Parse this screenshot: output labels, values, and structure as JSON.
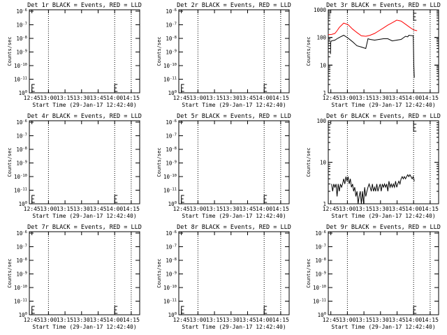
{
  "colors": {
    "events": "#000000",
    "lld": "#ff0000",
    "background": "#ffffff"
  },
  "chart_data": [
    {
      "type": "line",
      "title": "Det 1r BLACK = Events, RED = LLD",
      "xlabel": "Start Time (29-Jan-17 12:42:40)",
      "ylabel": "Counts/sec",
      "xlim": [
        "12:42:40",
        "14:22:40"
      ],
      "x_ticks": [
        "12:45",
        "13:00",
        "13:15",
        "13:30",
        "13:45",
        "14:00",
        "14:15"
      ],
      "yscale": "log",
      "ylim": [
        1e-06,
        1e-10
      ],
      "y_ticks": [
        "10^-6",
        "10^-7",
        "10^-8",
        "10^-9",
        "10^-10",
        "10^-11",
        "10^0"
      ],
      "vlines": [
        "13:00",
        "14:00",
        "14:15"
      ],
      "markers": [
        "12:45",
        "14:00"
      ],
      "series": []
    },
    {
      "type": "line",
      "title": "Det 2r BLACK = Events, RED = LLD",
      "xlabel": "Start Time (29-Jan-17 12:42:40)",
      "ylabel": "Counts/sec",
      "xlim": [
        "12:42:40",
        "14:22:40"
      ],
      "x_ticks": [
        "12:45",
        "13:00",
        "13:15",
        "13:30",
        "13:45",
        "14:00",
        "14:15"
      ],
      "yscale": "log",
      "y_ticks": [
        "10^-6",
        "10^-7",
        "10^-8",
        "10^-9",
        "10^-10",
        "10^-11",
        "10^0"
      ],
      "vlines": [
        "13:00",
        "14:00",
        "14:15"
      ],
      "markers": [
        "12:45",
        "14:00"
      ],
      "series": []
    },
    {
      "type": "line",
      "title": "Det 3r BLACK = Events, RED = LLD",
      "xlabel": "Start Time (29-Jan-17 12:42:40)",
      "ylabel": "Counts/sec",
      "xlim": [
        "12:42:40",
        "14:22:40"
      ],
      "x_ticks": [
        "12:45",
        "13:00",
        "13:15",
        "13:30",
        "13:45",
        "14:00",
        "14:15"
      ],
      "yscale": "log",
      "ylim": [
        1,
        1000
      ],
      "y_ticks": [
        "1000",
        "100",
        "10",
        "1"
      ],
      "vlines": [
        "13:00",
        "14:00",
        "14:15"
      ],
      "markers": [
        "14:00"
      ],
      "series": [
        {
          "name": "LLD",
          "color": "#ff0000",
          "x": [
            0,
            3,
            6,
            8,
            10,
            14,
            18,
            22,
            26,
            30,
            34,
            38,
            42,
            46,
            50,
            54,
            58,
            62,
            66,
            70,
            74,
            77,
            79,
            80.5
          ],
          "values": [
            125,
            128,
            140,
            175,
            230,
            330,
            290,
            200,
            150,
            115,
            110,
            120,
            140,
            175,
            220,
            280,
            340,
            420,
            390,
            300,
            230,
            190,
            180,
            175
          ]
        },
        {
          "name": "Events",
          "color": "#000000",
          "x": [
            2,
            2.3,
            3,
            4,
            6,
            8,
            10,
            14,
            18,
            22,
            26,
            30,
            34,
            36,
            38,
            42,
            46,
            50,
            54,
            58,
            62,
            66,
            70,
            72,
            73,
            74,
            76,
            77,
            77.5,
            78
          ],
          "values": [
            25,
            70,
            75,
            77,
            80,
            90,
            100,
            120,
            95,
            70,
            50,
            45,
            40,
            90,
            85,
            80,
            85,
            90,
            90,
            75,
            80,
            85,
            110,
            105,
            120,
            118,
            116,
            115,
            10,
            3.5
          ]
        }
      ]
    },
    {
      "type": "line",
      "title": "Det 4r BLACK = Events, RED = LLD",
      "xlabel": "Start Time (29-Jan-17 12:42:40)",
      "ylabel": "Counts/sec",
      "xlim": [
        "12:42:40",
        "14:22:40"
      ],
      "x_ticks": [
        "12:45",
        "13:00",
        "13:15",
        "13:30",
        "13:45",
        "14:00",
        "14:15"
      ],
      "yscale": "log",
      "y_ticks": [
        "10^-6",
        "10^-7",
        "10^-8",
        "10^-9",
        "10^-10",
        "10^-11",
        "10^0"
      ],
      "vlines": [
        "13:00",
        "14:00",
        "14:15"
      ],
      "markers": [
        "12:45",
        "14:00"
      ],
      "series": []
    },
    {
      "type": "line",
      "title": "Det 5r BLACK = Events, RED = LLD",
      "xlabel": "Start Time (29-Jan-17 12:42:40)",
      "ylabel": "Counts/sec",
      "xlim": [
        "12:42:40",
        "14:22:40"
      ],
      "x_ticks": [
        "12:45",
        "13:00",
        "13:15",
        "13:30",
        "13:45",
        "14:00",
        "14:15"
      ],
      "yscale": "log",
      "y_ticks": [
        "10^-6",
        "10^-7",
        "10^-8",
        "10^-9",
        "10^-10",
        "10^-11",
        "10^0"
      ],
      "vlines": [
        "13:00",
        "14:00",
        "14:15"
      ],
      "markers": [
        "12:45",
        "14:00"
      ],
      "series": []
    },
    {
      "type": "line",
      "title": "Det 6r BLACK = Events, RED = LLD",
      "xlabel": "Start Time (29-Jan-17 12:42:40)",
      "ylabel": "Counts/sec",
      "xlim": [
        "12:42:40",
        "14:22:40"
      ],
      "x_ticks": [
        "12:45",
        "13:00",
        "13:15",
        "13:30",
        "13:45",
        "14:00",
        "14:15"
      ],
      "yscale": "log",
      "ylim": [
        1,
        100
      ],
      "y_ticks": [
        "100",
        "10",
        "1"
      ],
      "vlines": [
        "13:00",
        "14:00",
        "14:15"
      ],
      "markers": [
        "14:00"
      ],
      "series": [
        {
          "name": "Events",
          "color": "#000000",
          "x": [
            3,
            4,
            5,
            6,
            7,
            8,
            9,
            10,
            11,
            12,
            13,
            14,
            15,
            16,
            17,
            18,
            19,
            20,
            21,
            22,
            23,
            24,
            25,
            26,
            27,
            28,
            29,
            30,
            31,
            32,
            33,
            34,
            35,
            36,
            37,
            38,
            39,
            40,
            41,
            42,
            43,
            44,
            45,
            46,
            47,
            48,
            49,
            50,
            51,
            52,
            53,
            54,
            55,
            56,
            57,
            58,
            59,
            60,
            61,
            62,
            63,
            64,
            65,
            66,
            67,
            68,
            69,
            70,
            71,
            72,
            73,
            74,
            75,
            76,
            77,
            78
          ],
          "values": [
            3,
            2,
            3,
            2.5,
            3,
            1.5,
            3,
            2,
            3,
            2.5,
            3,
            4,
            3,
            4.5,
            3.5,
            4.5,
            3,
            4,
            2.5,
            3,
            2,
            2.5,
            1.5,
            2,
            1,
            1.5,
            2,
            1,
            2,
            1,
            2.5,
            1.5,
            2,
            2.5,
            3,
            2.5,
            2,
            3,
            2,
            2.5,
            2,
            3,
            2,
            2.5,
            3,
            2,
            3,
            2.5,
            3,
            2.5,
            3,
            2,
            3.5,
            2.5,
            3,
            2.5,
            3,
            2.5,
            3.5,
            2.5,
            3,
            3.5,
            3,
            4,
            4.5,
            4,
            4.5,
            4,
            4.5,
            5,
            4.5,
            5,
            4.5,
            4,
            4.5,
            3.5
          ]
        }
      ]
    },
    {
      "type": "line",
      "title": "Det 7r BLACK = Events, RED = LLD",
      "xlabel": "Start Time (29-Jan-17 12:42:40)",
      "ylabel": "Counts/sec",
      "xlim": [
        "12:42:40",
        "14:22:40"
      ],
      "x_ticks": [
        "12:45",
        "13:00",
        "13:15",
        "13:30",
        "13:45",
        "14:00",
        "14:15"
      ],
      "yscale": "log",
      "y_ticks": [
        "10^-6",
        "10^-7",
        "10^-8",
        "10^-9",
        "10^-10",
        "10^-11",
        "10^0"
      ],
      "vlines": [
        "13:00",
        "14:00",
        "14:15"
      ],
      "markers": [
        "12:45",
        "14:00"
      ],
      "series": []
    },
    {
      "type": "line",
      "title": "Det 8r BLACK = Events, RED = LLD",
      "xlabel": "Start Time (29-Jan-17 12:42:40)",
      "ylabel": "Counts/sec",
      "xlim": [
        "12:42:40",
        "14:22:40"
      ],
      "x_ticks": [
        "12:45",
        "13:00",
        "13:15",
        "13:30",
        "13:45",
        "14:00",
        "14:15"
      ],
      "yscale": "log",
      "y_ticks": [
        "10^-6",
        "10^-7",
        "10^-8",
        "10^-9",
        "10^-10",
        "10^-11",
        "10^0"
      ],
      "vlines": [
        "13:00",
        "14:00",
        "14:15"
      ],
      "markers": [
        "12:45",
        "14:00"
      ],
      "series": []
    },
    {
      "type": "line",
      "title": "Det 9r BLACK = Events, RED = LLD",
      "xlabel": "Start Time (29-Jan-17 12:42:40)",
      "ylabel": "Counts/sec",
      "xlim": [
        "12:42:40",
        "14:22:40"
      ],
      "x_ticks": [
        "12:45",
        "13:00",
        "13:15",
        "13:30",
        "13:45",
        "14:00",
        "14:15"
      ],
      "yscale": "log",
      "y_ticks": [
        "10^-6",
        "10^-7",
        "10^-8",
        "10^-9",
        "10^-10",
        "10^-11",
        "10^0"
      ],
      "vlines": [
        "13:00",
        "14:00",
        "14:15"
      ],
      "markers": [
        "14:00"
      ],
      "series": []
    }
  ]
}
